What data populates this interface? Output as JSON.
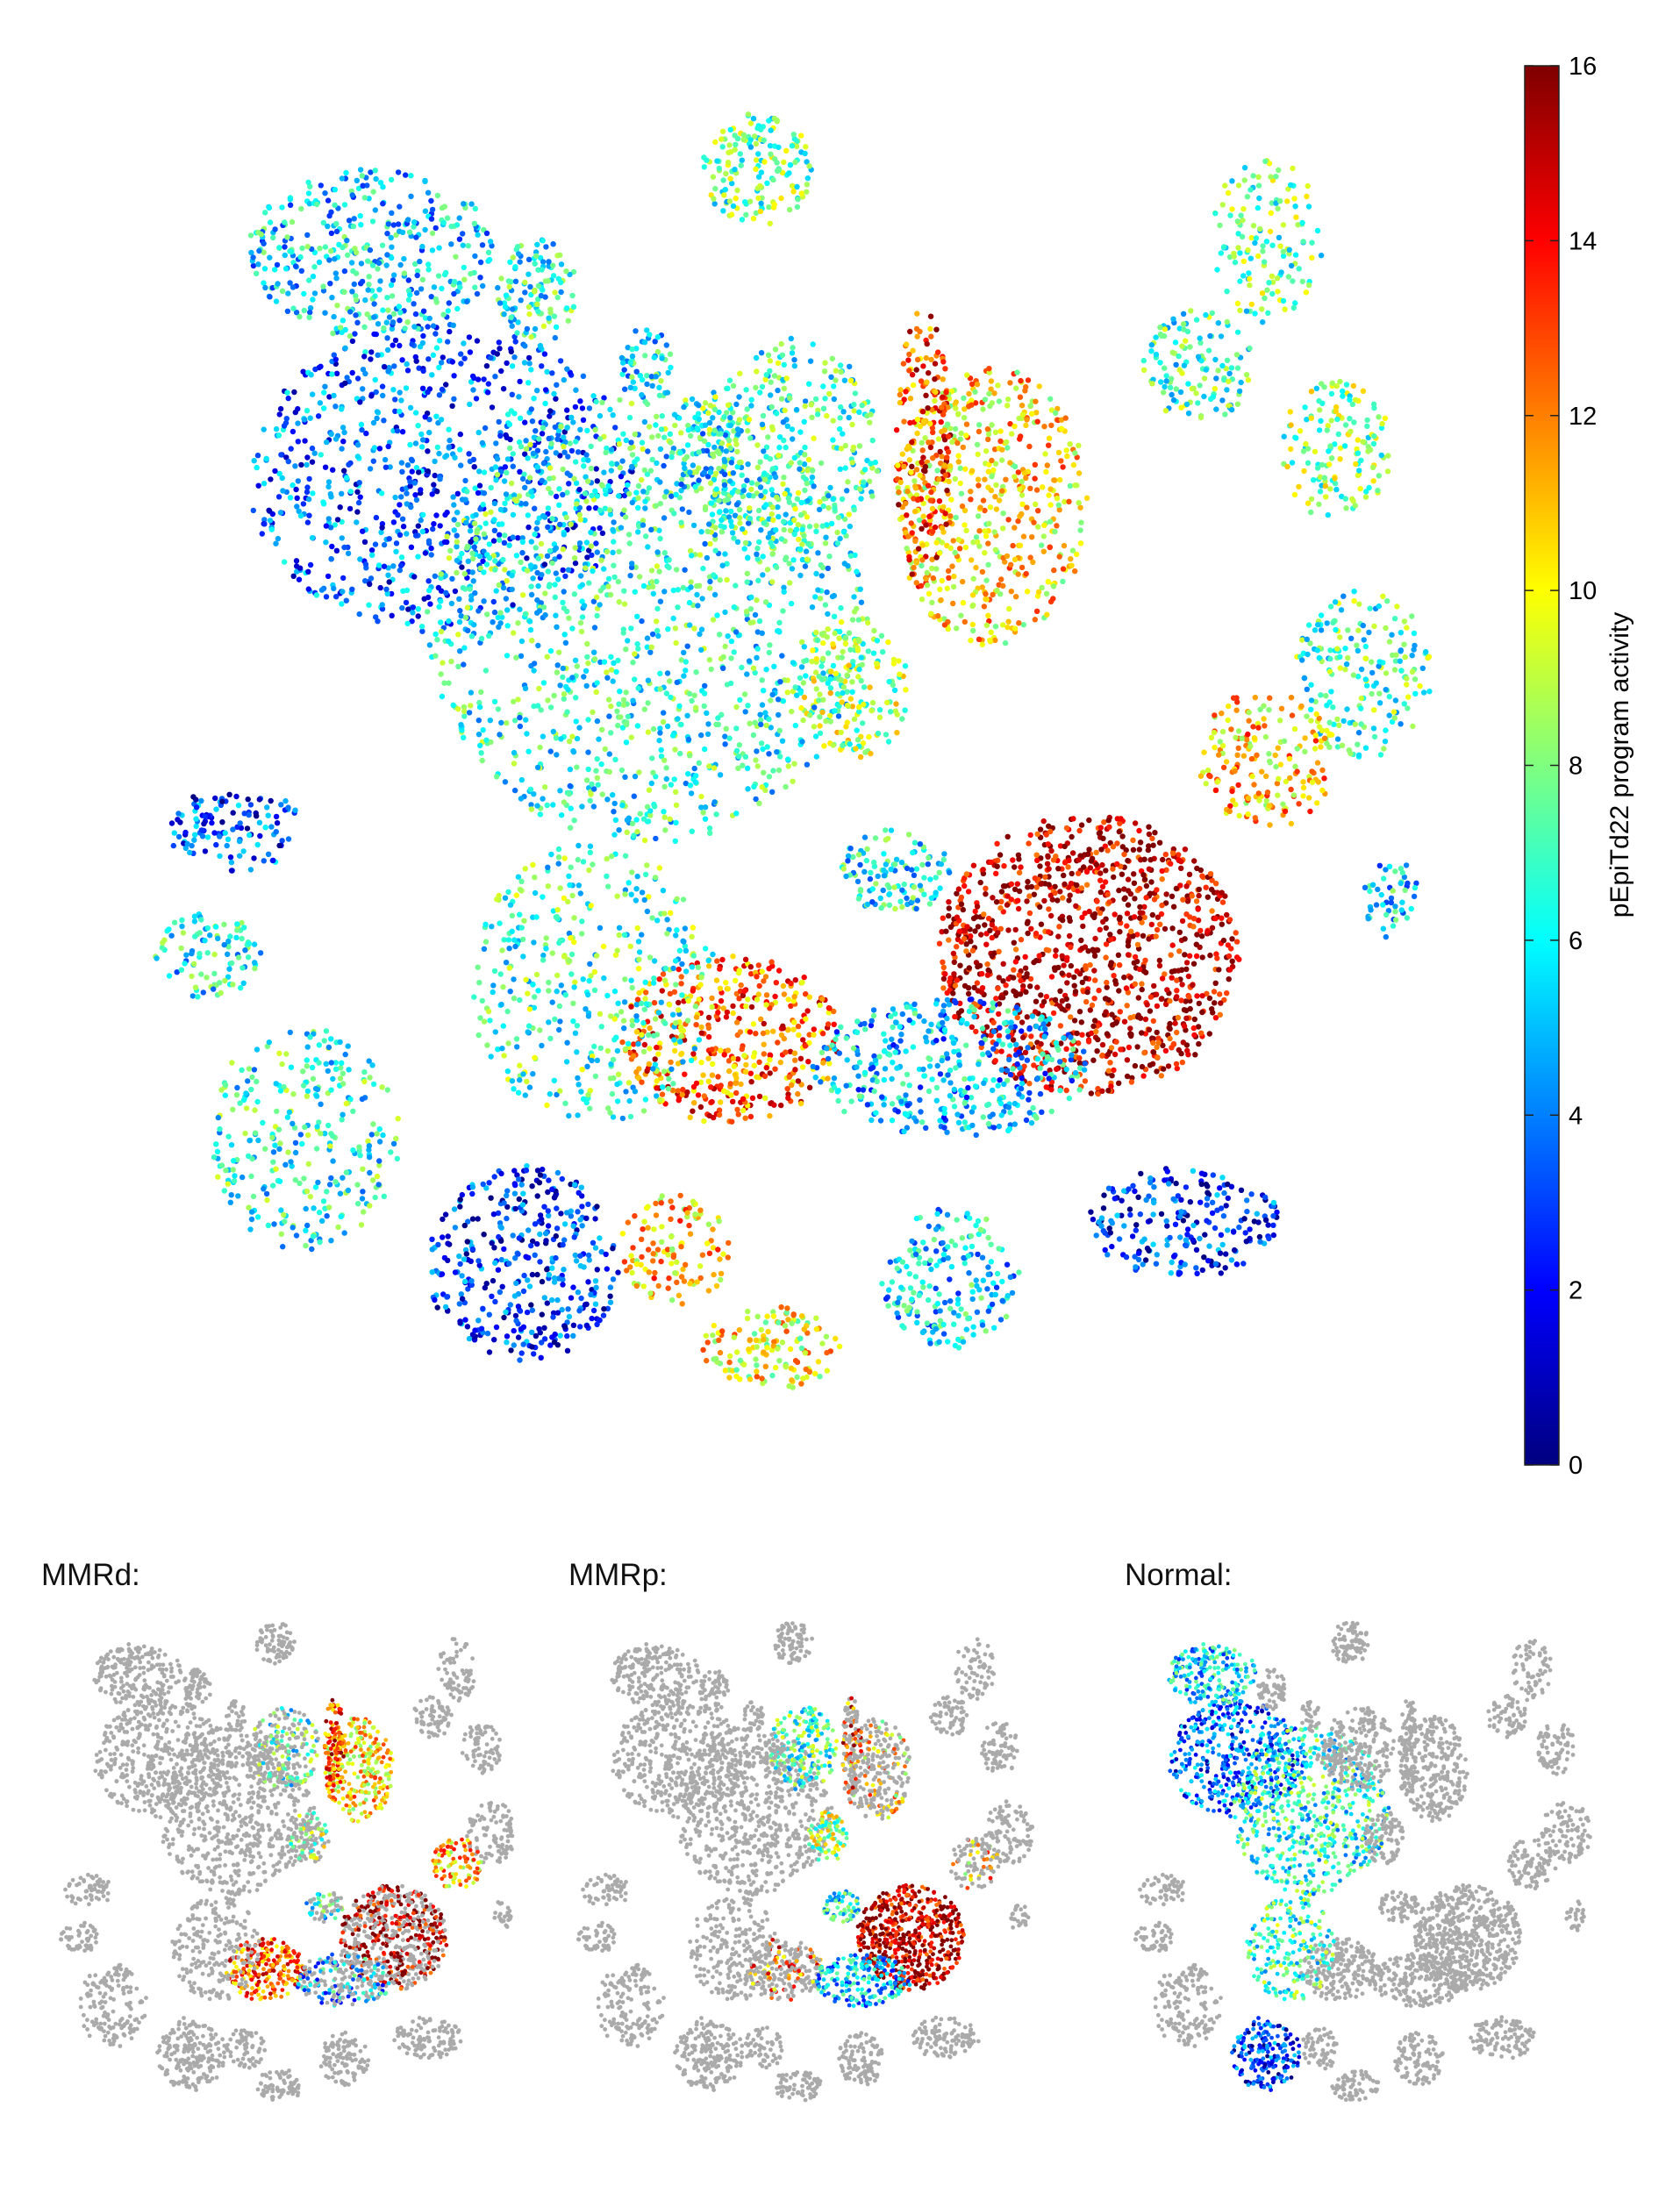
{
  "chart_data": [
    {
      "type": "scatter",
      "title": "",
      "colorbar": {
        "label": "pEpiTd22 program activity",
        "range": [
          0,
          16
        ],
        "ticks": [
          0,
          2,
          4,
          6,
          8,
          10,
          12,
          14,
          16
        ],
        "colormap": "jet"
      },
      "grid": false,
      "axes_visible": false
    },
    {
      "type": "scatter",
      "title": "MMRd:",
      "background_color": "#aaaaaa"
    },
    {
      "type": "scatter",
      "title": "MMRp:",
      "background_color": "#aaaaaa"
    },
    {
      "type": "scatter",
      "title": "Normal:",
      "background_color": "#aaaaaa"
    }
  ],
  "labels": {
    "colorbar_label": "pEpiTd22 program activity",
    "panel_titles": [
      "MMRd:",
      "MMRp:",
      "Normal:"
    ]
  }
}
